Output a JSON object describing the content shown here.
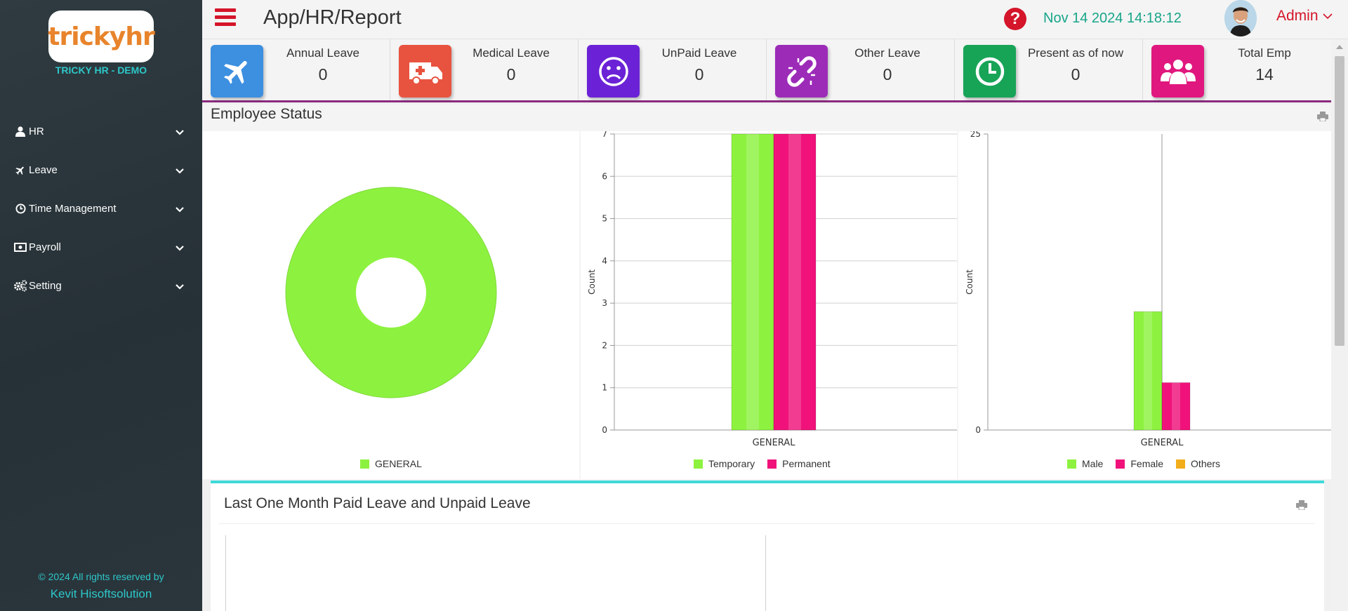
{
  "brand": {
    "logo": "trickyhr",
    "tagline": "TRICKY HR - DEMO"
  },
  "sidebar": {
    "items": [
      {
        "label": "HR",
        "icon": "user-icon"
      },
      {
        "label": "Leave",
        "icon": "plane-icon"
      },
      {
        "label": "Time Management",
        "icon": "clock-icon"
      },
      {
        "label": "Payroll",
        "icon": "money-icon"
      },
      {
        "label": "Setting",
        "icon": "gears-icon"
      }
    ],
    "footer_copyright": "© 2024 All rights reserved by",
    "footer_org": "Kevit Hisoftsolution"
  },
  "header": {
    "title": "App/HR/Report",
    "datetime": "Nov 14 2024 14:18:12",
    "user": "Admin",
    "help_symbol": "?"
  },
  "stats": [
    {
      "label": "Annual Leave",
      "value": "0",
      "icon": "plane-icon",
      "color": "#3d8fe0"
    },
    {
      "label": "Medical Leave",
      "value": "0",
      "icon": "ambulance-icon",
      "color": "#e8533f"
    },
    {
      "label": "UnPaid Leave",
      "value": "0",
      "icon": "frown-icon",
      "color": "#6b22d6"
    },
    {
      "label": "Other Leave",
      "value": "0",
      "icon": "broken-link-icon",
      "color": "#9c2bb8"
    },
    {
      "label": "Present as of now",
      "value": "0",
      "icon": "clock-icon",
      "color": "#17a457"
    },
    {
      "label": "Total Emp",
      "value": "14",
      "icon": "users-icon",
      "color": "#e0177e"
    }
  ],
  "employee_status": {
    "title": "Employee Status"
  },
  "chart_data": [
    {
      "type": "pie",
      "style": "donut",
      "categories": [
        "GENERAL"
      ],
      "values": [
        14
      ],
      "colors": [
        "#8df23f"
      ],
      "legend_position": "bottom"
    },
    {
      "type": "bar",
      "categories": [
        "GENERAL"
      ],
      "series": [
        {
          "name": "Temporary",
          "values": [
            7
          ],
          "color": "#8df23f"
        },
        {
          "name": "Permanent",
          "values": [
            7
          ],
          "color": "#f0127a"
        }
      ],
      "ylabel": "Count",
      "ylim": [
        0,
        7
      ],
      "yticks": [
        "0",
        "1",
        "2",
        "3",
        "4",
        "5",
        "6",
        "7"
      ],
      "grid": true,
      "legend_position": "bottom"
    },
    {
      "type": "bar",
      "categories": [
        "GENERAL"
      ],
      "series": [
        {
          "name": "Male",
          "values": [
            10
          ],
          "color": "#8df23f"
        },
        {
          "name": "Female",
          "values": [
            4
          ],
          "color": "#f0127a"
        },
        {
          "name": "Others",
          "values": [
            0
          ],
          "color": "#f2ad1a"
        }
      ],
      "ylabel": "Count",
      "ylim": [
        0,
        25
      ],
      "yticks": [
        "0",
        "25"
      ],
      "grid": false,
      "legend_position": "bottom"
    }
  ],
  "leave_panel": {
    "title": "Last One Month Paid Leave and Unpaid Leave"
  }
}
